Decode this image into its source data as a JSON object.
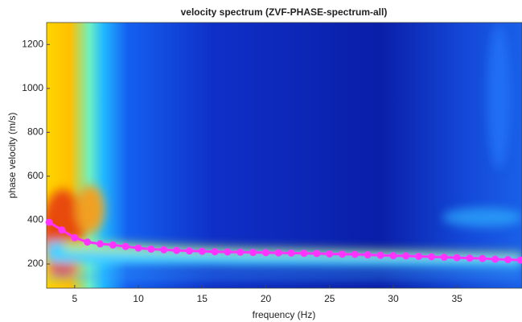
{
  "chart_data": {
    "type": "line",
    "title": "velocity spectrum (ZVF-PHASE-spectrum-all)",
    "x_label": "frequency (Hz)",
    "y_label": "phase velocity (m/s)",
    "x": [
      3,
      4,
      5,
      6,
      7,
      8,
      9,
      10,
      11,
      12,
      13,
      14,
      15,
      16,
      17,
      18,
      19,
      20,
      21,
      22,
      23,
      24,
      25,
      26,
      27,
      28,
      29,
      30,
      31,
      32,
      33,
      34,
      35,
      36,
      37,
      38,
      39,
      40
    ],
    "series": [
      {
        "color": "#ff33ff",
        "values": [
          390,
          355,
          320,
          300,
          292,
          287,
          280,
          273,
          268,
          265,
          262,
          260,
          258,
          256,
          255,
          254,
          253,
          252,
          251,
          250,
          249,
          248,
          246,
          245,
          244,
          242,
          240,
          238,
          237,
          235,
          233,
          231,
          229,
          227,
          225,
          222,
          220,
          218
        ]
      }
    ],
    "xlim": [
      2.8,
      40.1
    ],
    "ylim": [
      90,
      1300
    ],
    "xticks": [
      5,
      10,
      15,
      20,
      25,
      30,
      35
    ],
    "yticks": [
      200,
      400,
      600,
      800,
      1000,
      1200
    ],
    "grid": false
  }
}
